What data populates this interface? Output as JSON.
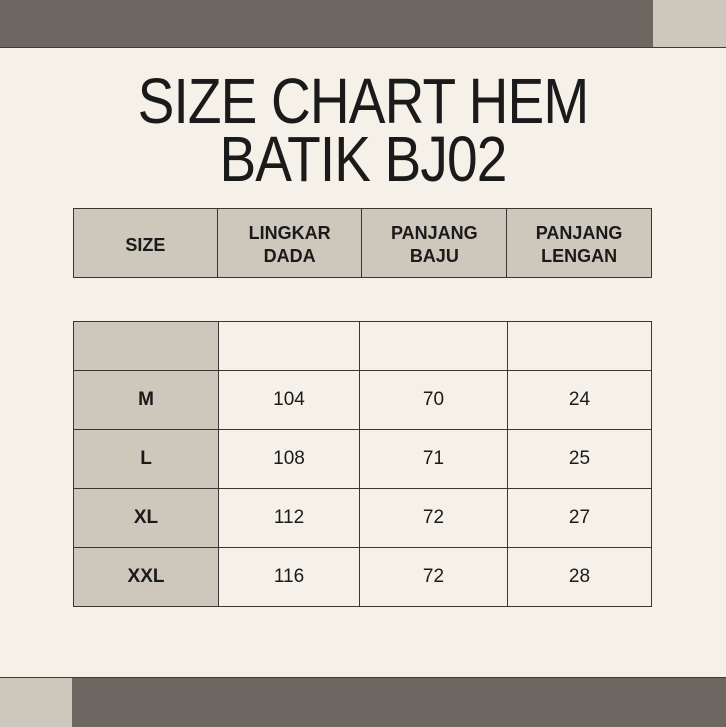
{
  "title": {
    "line1": "SIZE CHART HEM",
    "line2": "BATIK BJ02"
  },
  "colors": {
    "background": "#f6f1e8",
    "dark_bar": "#6c6761",
    "accent": "#cdc7bc"
  },
  "header": [
    {
      "l1": "SIZE",
      "l2": ""
    },
    {
      "l1": "LINGKAR",
      "l2": "DADA"
    },
    {
      "l1": "PANJANG",
      "l2": "BAJU"
    },
    {
      "l1": "PANJANG",
      "l2": "LENGAN"
    }
  ],
  "rows": [
    {
      "size": "M",
      "dada": "104",
      "baju": "70",
      "lengan": "24"
    },
    {
      "size": "L",
      "dada": "108",
      "baju": "71",
      "lengan": "25"
    },
    {
      "size": "XL",
      "dada": "112",
      "baju": "72",
      "lengan": "27"
    },
    {
      "size": "XXL",
      "dada": "116",
      "baju": "72",
      "lengan": "28"
    }
  ]
}
